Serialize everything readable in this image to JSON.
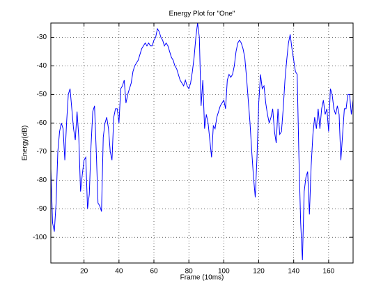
{
  "chart_data": {
    "type": "line",
    "title": "Energy Plot for \"One\"",
    "xlabel": "Frame (10ms)",
    "ylabel": "Energy(dB)",
    "x": [
      1,
      2,
      3,
      4,
      5,
      6,
      7,
      8,
      9,
      10,
      11,
      12,
      13,
      14,
      15,
      16,
      17,
      18,
      19,
      20,
      21,
      22,
      23,
      24,
      25,
      26,
      27,
      28,
      29,
      30,
      31,
      32,
      33,
      34,
      35,
      36,
      37,
      38,
      39,
      40,
      41,
      42,
      43,
      44,
      45,
      46,
      47,
      48,
      49,
      50,
      51,
      52,
      53,
      54,
      55,
      56,
      57,
      58,
      59,
      60,
      61,
      62,
      63,
      64,
      65,
      66,
      67,
      68,
      69,
      70,
      71,
      72,
      73,
      74,
      75,
      76,
      77,
      78,
      79,
      80,
      81,
      82,
      83,
      84,
      85,
      86,
      87,
      88,
      89,
      90,
      91,
      92,
      93,
      94,
      95,
      96,
      97,
      98,
      99,
      100,
      101,
      102,
      103,
      104,
      105,
      106,
      107,
      108,
      109,
      110,
      111,
      112,
      113,
      114,
      115,
      116,
      117,
      118,
      119,
      120,
      121,
      122,
      123,
      124,
      125,
      126,
      127,
      128,
      129,
      130,
      131,
      132,
      133,
      134,
      135,
      136,
      137,
      138,
      139,
      140,
      141,
      142,
      143,
      144,
      145,
      146,
      147,
      148,
      149,
      150,
      151,
      152,
      153,
      154,
      155,
      156,
      157,
      158,
      159,
      160,
      161,
      162,
      163,
      164,
      165,
      166,
      167,
      168,
      169,
      170,
      171,
      172,
      173,
      174
    ],
    "series": [
      {
        "name": "Energy",
        "color": "#0000ff",
        "values": [
          -76,
          -95,
          -98,
          -88,
          -70,
          -63,
          -60,
          -62,
          -73,
          -60,
          -50,
          -48,
          -55,
          -62,
          -66,
          -56,
          -65,
          -84,
          -78,
          -73,
          -72,
          -90,
          -85,
          -68,
          -56,
          -54,
          -70,
          -88,
          -89,
          -91,
          -65,
          -60,
          -58,
          -62,
          -70,
          -73,
          -58,
          -55,
          -55,
          -60,
          -48,
          -47,
          -45,
          -53,
          -50,
          -48,
          -46,
          -42,
          -40,
          -39,
          -38,
          -36,
          -34,
          -33,
          -32,
          -33,
          -32,
          -33,
          -33,
          -31,
          -30,
          -27,
          -28,
          -30,
          -31,
          -33,
          -32,
          -33,
          -35,
          -37,
          -38,
          -40,
          -41,
          -43,
          -45,
          -46,
          -47,
          -45,
          -47,
          -48,
          -46,
          -42,
          -37,
          -30,
          -25,
          -30,
          -54,
          -45,
          -62,
          -57,
          -60,
          -66,
          -72,
          -61,
          -62,
          -58,
          -56,
          -54,
          -53,
          -52,
          -55,
          -45,
          -43,
          -44,
          -43,
          -40,
          -35,
          -32,
          -31,
          -32,
          -34,
          -37,
          -44,
          -52,
          -60,
          -70,
          -79,
          -86,
          -72,
          -53,
          -43,
          -48,
          -47,
          -53,
          -57,
          -60,
          -58,
          -55,
          -63,
          -67,
          -55,
          -64,
          -63,
          -55,
          -45,
          -38,
          -32,
          -29,
          -34,
          -38,
          -42,
          -43,
          -72,
          -95,
          -108,
          -84,
          -79,
          -77,
          -92,
          -75,
          -64,
          -58,
          -62,
          -55,
          -62,
          -55,
          -52,
          -57,
          -55,
          -63,
          -48,
          -50,
          -55,
          -57,
          -54,
          -57,
          -73,
          -64,
          -55,
          -55,
          -50,
          -50,
          -57,
          -52
        ]
      }
    ],
    "xlim": [
      1,
      174
    ],
    "ylim": [
      -109,
      -25
    ],
    "xticks": [
      20,
      40,
      60,
      80,
      100,
      120,
      140,
      160
    ],
    "yticks": [
      -100,
      -90,
      -80,
      -70,
      -60,
      -50,
      -40,
      -30
    ],
    "grid": true
  }
}
